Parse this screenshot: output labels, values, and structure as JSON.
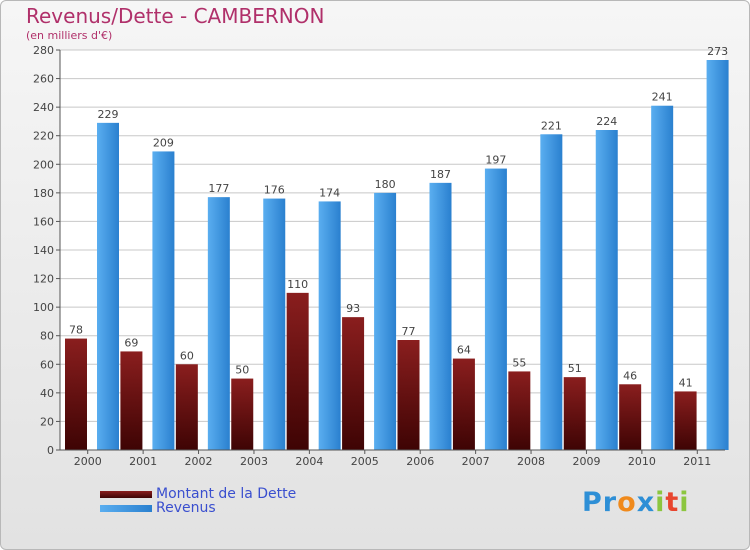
{
  "header": {
    "title": "Revenus/Dette - CAMBERNON",
    "subtitle": "(en milliers d'€)"
  },
  "logo": {
    "text": "Proxiti",
    "letters": [
      "P",
      "r",
      "o",
      "x",
      "i",
      "t",
      "i"
    ],
    "colors": [
      "#2e8fd6",
      "#2e8fd6",
      "#f08a1c",
      "#2e8fd6",
      "#8cc63f",
      "#e8452e",
      "#8cc63f"
    ]
  },
  "chart_data": {
    "type": "bar",
    "title": "Revenus/Dette - CAMBERNON",
    "subtitle": "(en milliers d'€)",
    "xlabel": "",
    "ylabel": "",
    "categories": [
      "2000",
      "2001",
      "2002",
      "2003",
      "2004",
      "2005",
      "2006",
      "2007",
      "2008",
      "2009",
      "2010",
      "2011"
    ],
    "ylim": [
      0,
      280
    ],
    "yticks": [
      0,
      20,
      40,
      60,
      80,
      100,
      120,
      140,
      160,
      180,
      200,
      220,
      240,
      260,
      280
    ],
    "grid": true,
    "legend_position": "bottom-left",
    "series": [
      {
        "name": "Montant de la Dette",
        "color": "#7a1010",
        "values": [
          78,
          69,
          60,
          50,
          110,
          93,
          77,
          64,
          55,
          51,
          46,
          41
        ]
      },
      {
        "name": "Revenus",
        "color": "#3a95e0",
        "values": [
          229,
          209,
          177,
          176,
          174,
          180,
          187,
          197,
          221,
          224,
          241,
          273
        ]
      }
    ]
  }
}
